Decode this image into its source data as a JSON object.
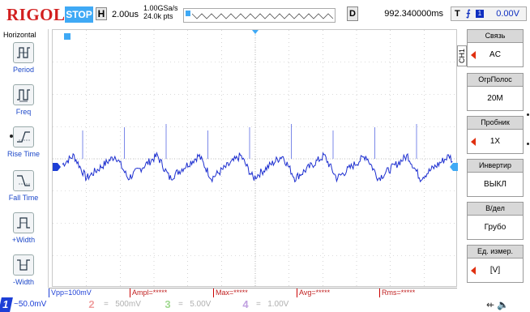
{
  "brand": "RIGOL",
  "run_state": "STOP",
  "horizontal": {
    "label": "H",
    "timebase": "2.00us",
    "sample_rate": "1.00GSa/s",
    "memory": "24.0k pts"
  },
  "delay": {
    "label": "D",
    "value": "992.340000ms"
  },
  "trigger": {
    "label": "T",
    "edge_symbol": "⨍",
    "source": "1",
    "level": "0.00V"
  },
  "left_menu": {
    "title": "Horizontal",
    "items": [
      {
        "label": "Period"
      },
      {
        "label": "Freq"
      },
      {
        "label": "Rise Time"
      },
      {
        "label": "Fall Time"
      },
      {
        "label": "+Width"
      },
      {
        "label": "-Width"
      }
    ]
  },
  "channel_tag": "CH1",
  "right_menu": [
    {
      "header": "Связь",
      "value": "AC",
      "arrow": true
    },
    {
      "header": "ОгрПолос",
      "value": "20M",
      "arrow": false
    },
    {
      "header": "Пробник",
      "value": "1X",
      "arrow": true
    },
    {
      "header": "Инвертир",
      "value": "ВЫКЛ",
      "arrow": false
    },
    {
      "header": "В/дел",
      "value": "Грубо",
      "arrow": false
    },
    {
      "header": "Ед. измер.",
      "value": "[V]",
      "arrow": true
    }
  ],
  "measurements": [
    {
      "label": "Vpp=100mV"
    },
    {
      "label": "Ampl=*****"
    },
    {
      "label": "Max=*****"
    },
    {
      "label": "Avg=*****"
    },
    {
      "label": "Rms=*****"
    }
  ],
  "channels": [
    {
      "num": "1",
      "coupling": "~",
      "scale": "50.0mV",
      "color": "#1d3fd6"
    },
    {
      "num": "2",
      "coupling": "=",
      "scale": "500mV",
      "color": "#f0a0a0"
    },
    {
      "num": "3",
      "coupling": "=",
      "scale": "5.00V",
      "color": "#a0d890"
    },
    {
      "num": "4",
      "coupling": "=",
      "scale": "1.00V",
      "color": "#c0a0e0"
    }
  ],
  "colors": {
    "trace": "#1d2fd0",
    "accent": "#3fa9f5",
    "brand": "#d21f1f"
  }
}
